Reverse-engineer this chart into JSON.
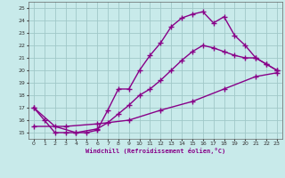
{
  "xlabel": "Windchill (Refroidissement éolien,°C)",
  "xlim": [
    -0.5,
    23.5
  ],
  "ylim": [
    14.5,
    25.5
  ],
  "xticks": [
    0,
    1,
    2,
    3,
    4,
    5,
    6,
    7,
    8,
    9,
    10,
    11,
    12,
    13,
    14,
    15,
    16,
    17,
    18,
    19,
    20,
    21,
    22,
    23
  ],
  "yticks": [
    15,
    16,
    17,
    18,
    19,
    20,
    21,
    22,
    23,
    24,
    25
  ],
  "bg_color": "#c8eaea",
  "line_color": "#880088",
  "grid_color": "#a0c8c8",
  "line1_x": [
    0,
    1,
    2,
    3,
    4,
    5,
    6,
    7,
    8,
    9,
    10,
    11,
    12,
    13,
    14,
    15,
    16,
    17,
    18,
    19,
    20,
    21,
    22,
    23
  ],
  "line1_y": [
    17,
    16,
    15,
    15,
    15,
    15,
    15.2,
    16.8,
    18.5,
    18.5,
    20.0,
    21.2,
    22.2,
    23.5,
    24.2,
    24.5,
    24.7,
    23.8,
    24.3,
    22.8,
    22.0,
    21.0,
    20.5,
    20.0
  ],
  "line2_x": [
    0,
    2,
    4,
    6,
    7,
    8,
    9,
    10,
    11,
    12,
    13,
    14,
    15,
    16,
    17,
    18,
    19,
    20,
    21,
    22,
    23
  ],
  "line2_y": [
    17,
    15.5,
    15,
    15.3,
    15.8,
    16.5,
    17.2,
    18.0,
    18.5,
    19.2,
    20.0,
    20.8,
    21.5,
    22.0,
    21.8,
    21.5,
    21.2,
    21.0,
    21.0,
    20.5,
    20.0
  ],
  "line3_x": [
    0,
    3,
    6,
    9,
    12,
    15,
    18,
    21,
    23
  ],
  "line3_y": [
    15.5,
    15.5,
    15.7,
    16.0,
    16.8,
    17.5,
    18.5,
    19.5,
    19.8
  ],
  "marker": "+",
  "markersize": 4,
  "linewidth": 1.0
}
